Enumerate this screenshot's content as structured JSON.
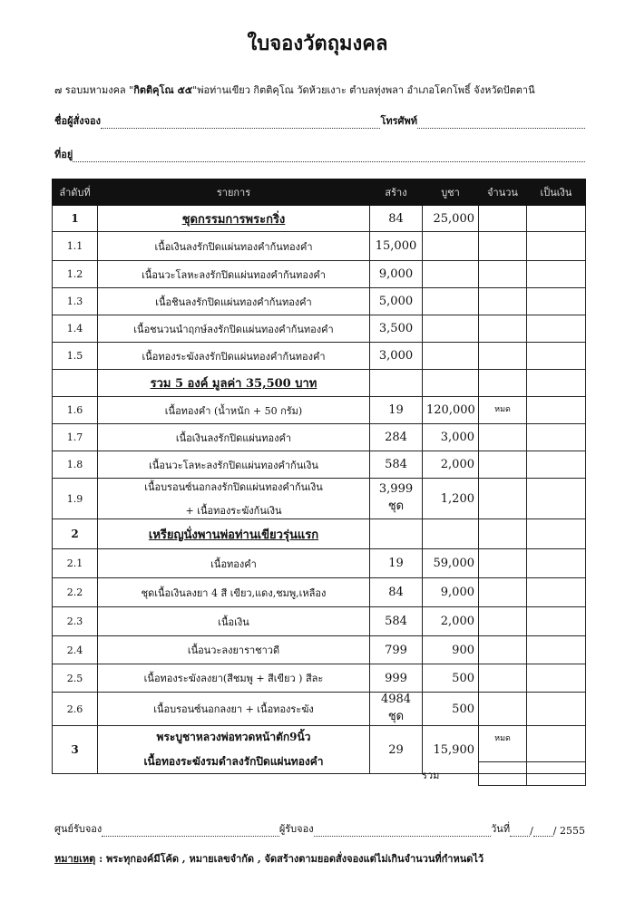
{
  "title": "ใบจองวัตถุมงคล",
  "subtitle": {
    "prefix": "๗ รอบมหามงคล \"",
    "bold": "กิตติคุโณ ๕๕",
    "suffix": "\"พ่อท่านเขียว กิตติคุโณ วัดห้วยเงาะ ตำบลทุ่งพลา อำเภอโคกโพธิ์ จังหวัดปัตตานี"
  },
  "form": {
    "name_label": "ชื่อผู้สั่งจอง",
    "phone_label": "โทรศัพท์",
    "address_label": "ที่อยู่"
  },
  "table": {
    "headers": [
      "ลำดับที่",
      "รายการ",
      "สร้าง",
      "บูชา",
      "จำนวน",
      "เป็นเงิน"
    ],
    "rows": [
      {
        "no": "1",
        "item": "ชุดกรรมการพระกริ่ง",
        "style": "head",
        "made": "84",
        "price": "25,000",
        "qty": "",
        "amount": ""
      },
      {
        "no": "1.1",
        "item": "เนื้อเงินลงรักปิดแผ่นทองคำก้นทองคำ",
        "made": "15,000",
        "price": "",
        "qty": "",
        "amount": ""
      },
      {
        "no": "1.2",
        "item": "เนื้อนวะโลหะลงรักปิดแผ่นทองคำก้นทองคำ",
        "made": "9,000",
        "price": "",
        "qty": "",
        "amount": ""
      },
      {
        "no": "1.3",
        "item": "เนื้อชินลงรักปิดแผ่นทองคำก้นทองคำ",
        "made": "5,000",
        "price": "",
        "qty": "",
        "amount": ""
      },
      {
        "no": "1.4",
        "item": "เนื้อชนวนนำฤกษ์ลงรักปิดแผ่นทองคำก้นทองคำ",
        "made": "3,500",
        "price": "",
        "qty": "",
        "amount": ""
      },
      {
        "no": "1.5",
        "item": "เนื้อทองระฆังลงรักปิดแผ่นทองคำก้นทองคำ",
        "made": "3,000",
        "price": "",
        "qty": "",
        "amount": ""
      },
      {
        "no": "",
        "item": "รวม 5 องค์ มูลค่า 35,500 บาท",
        "style": "head",
        "made": "",
        "price": "",
        "qty": "",
        "amount": ""
      },
      {
        "no": "1.6",
        "item": "เนื้อทองคำ (น้ำหนัก + 50 กรัม)",
        "made": "19",
        "price": "120,000",
        "qty": "หมด",
        "amount": ""
      },
      {
        "no": "1.7",
        "item": "เนื้อเงินลงรักปิดแผ่นทองคำ",
        "made": "284",
        "price": "3,000",
        "qty": "",
        "amount": ""
      },
      {
        "no": "1.8",
        "item": "เนื้อนวะโลหะลงรักปิดแผ่นทองคำก้นเงิน",
        "made": "584",
        "price": "2,000",
        "qty": "",
        "amount": ""
      },
      {
        "no": "1.9",
        "item": "เนื้อบรอนซ์นอกลงรักปิดแผ่นทองคำก้นเงิน",
        "item2": "+ เนื้อทองระฆังก้นเงิน",
        "made": "3,999 ชุด",
        "price": "1,200",
        "qty": "",
        "amount": ""
      },
      {
        "no": "2",
        "item": "เหรียญนั่งพานพ่อท่านเขียวรุ่นแรก",
        "style": "head",
        "made": "",
        "price": "",
        "qty": "",
        "amount": ""
      },
      {
        "no": "2.1",
        "item": "เนื้อทองคำ",
        "made": "19",
        "price": "59,000",
        "qty": "",
        "amount": ""
      },
      {
        "no": "2.2",
        "item": "ชุดเนื้อเงินลงยา 4 สี เขียว,แดง,ชมพู,เหลือง",
        "made": "84",
        "price": "9,000",
        "qty": "",
        "amount": ""
      },
      {
        "no": "2.3",
        "item": "เนื้อเงิน",
        "made": "584",
        "price": "2,000",
        "qty": "",
        "amount": ""
      },
      {
        "no": "2.4",
        "item": "เนื้อนวะลงยาราชาวดี",
        "made": "799",
        "price": "900",
        "qty": "",
        "amount": ""
      },
      {
        "no": "2.5",
        "item": "เนื้อทองระฆังลงยา(สีชมพู + สีเขียว ) สีละ",
        "made": "999",
        "price": "500",
        "qty": "",
        "amount": ""
      },
      {
        "no": "2.6",
        "item": "เนื้อบรอนซ์นอกลงยา + เนื้อทองระฆัง",
        "made": "4984 ชุด",
        "price": "500",
        "qty": "",
        "amount": ""
      },
      {
        "no": "3",
        "item": "พระบูชาหลวงพ่อทวดหน้าตัก9นิ้ว",
        "item2": "เนื้อทองระฆังรมดำลงรักปิดแผ่นทองคำ",
        "style": "bold",
        "made": "29",
        "price": "15,900",
        "qty": "หมด",
        "amount": ""
      }
    ],
    "total_label": "รวม"
  },
  "footer": {
    "center_label": "ศูนย์รับจอง",
    "receiver_label": "ผู้รับจอง",
    "date_label": "วันที่",
    "date_sep": "/",
    "year": "/ 2555"
  },
  "note": {
    "label": "หมายเหตุ",
    "text": " : พระทุกองค์มีโค้ด , หมายเลขจำกัด , จัดสร้างตามยอดสั่งจองแต่ไม่เกินจำนวนที่กำหนดไว้"
  }
}
